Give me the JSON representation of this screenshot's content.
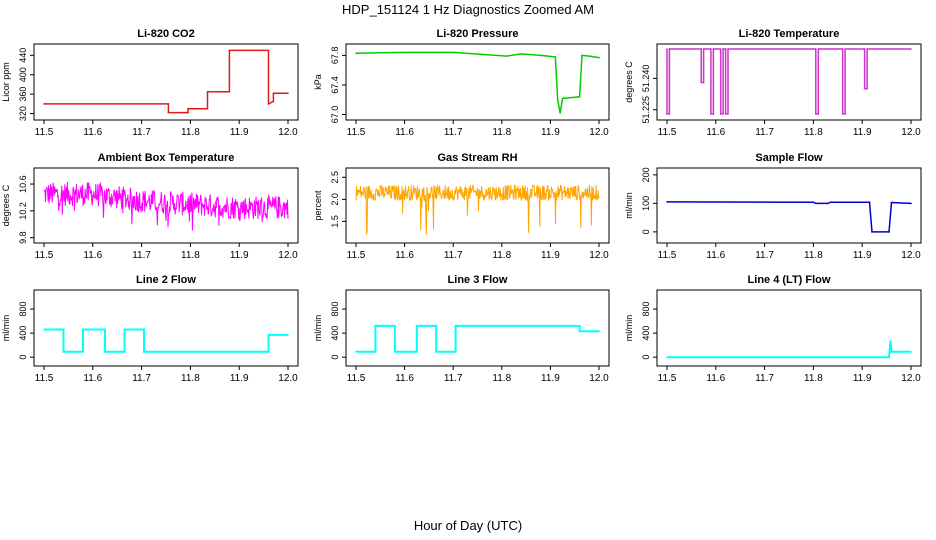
{
  "title": "HDP_151124  1 Hz Diagnostics Zoomed AM",
  "xlabel": "Hour of Day (UTC)",
  "chart_data": [
    {
      "type": "line",
      "title": "Li-820 CO2",
      "ylabel": "Licor ppm",
      "color": "#e31a1c",
      "xlim": [
        11.5,
        12.0
      ],
      "ylim": [
        315,
        455
      ],
      "xticks": [
        "11.5",
        "11.6",
        "11.7",
        "11.8",
        "11.9",
        "12.0"
      ],
      "yticks": [
        "320",
        "360",
        "400",
        "440"
      ],
      "series": [
        {
          "x": [
            11.5,
            11.755,
            11.755,
            11.795,
            11.795,
            11.835,
            11.835,
            11.88,
            11.88,
            11.96,
            11.96,
            11.97,
            11.97,
            12.0
          ],
          "y": [
            340,
            340,
            322,
            322,
            330,
            330,
            365,
            365,
            450,
            450,
            340,
            345,
            362,
            362
          ]
        }
      ]
    },
    {
      "type": "line",
      "title": "Li-820 Pressure",
      "ylabel": "kPa",
      "color": "#00cc00",
      "xlim": [
        11.5,
        12.0
      ],
      "ylim": [
        66.98,
        67.9
      ],
      "xticks": [
        "11.5",
        "11.6",
        "11.7",
        "11.8",
        "11.9",
        "12.0"
      ],
      "yticks": [
        "67.0",
        "67.4",
        "67.8"
      ],
      "series": [
        {
          "x": [
            11.5,
            11.6,
            11.7,
            11.77,
            11.81,
            11.84,
            11.88,
            11.91,
            11.915,
            11.92,
            11.925,
            11.93,
            11.96,
            11.965,
            11.98,
            12.0
          ],
          "y": [
            67.83,
            67.84,
            67.84,
            67.81,
            67.79,
            67.82,
            67.8,
            67.78,
            67.2,
            67.02,
            67.22,
            67.22,
            67.24,
            67.8,
            67.79,
            67.77
          ]
        }
      ]
    },
    {
      "type": "line",
      "title": "Li-820 Temperature",
      "ylabel": "degrees C",
      "color": "#cc33cc",
      "xlim": [
        11.5,
        12.0
      ],
      "ylim": [
        51.222,
        51.2545
      ],
      "xticks": [
        "11.5",
        "11.6",
        "11.7",
        "11.8",
        "11.9",
        "12.0"
      ],
      "yticks": [
        "51.225",
        "51.240"
      ],
      "series": [
        {
          "x": [
            11.5,
            11.5,
            11.505,
            11.505,
            11.57,
            11.57,
            11.575,
            11.575,
            11.59,
            11.59,
            11.595,
            11.595,
            11.61,
            11.61,
            11.615,
            11.615,
            11.62,
            11.62,
            11.625,
            11.625,
            11.805,
            11.805,
            11.81,
            11.81,
            11.86,
            11.86,
            11.865,
            11.865,
            11.905,
            11.905,
            11.91,
            11.91,
            12.0
          ],
          "y": [
            51.254,
            51.223,
            51.223,
            51.254,
            51.254,
            51.238,
            51.238,
            51.254,
            51.254,
            51.223,
            51.223,
            51.254,
            51.254,
            51.223,
            51.223,
            51.254,
            51.254,
            51.223,
            51.223,
            51.254,
            51.254,
            51.223,
            51.223,
            51.254,
            51.254,
            51.223,
            51.223,
            51.254,
            51.254,
            51.235,
            51.235,
            51.254,
            51.254
          ]
        }
      ]
    },
    {
      "type": "line",
      "title": "Ambient Box Temperature",
      "ylabel": "degrees C",
      "color": "#ff00ff",
      "xlim": [
        11.5,
        12.0
      ],
      "ylim": [
        9.78,
        10.78
      ],
      "xticks": [
        "11.5",
        "11.6",
        "11.7",
        "11.8",
        "11.9",
        "12.0"
      ],
      "yticks": [
        "9.8",
        "10.2",
        "10.6"
      ],
      "series": [
        {
          "x": [
            11.5,
            11.6,
            11.7,
            11.8,
            11.9,
            12.0
          ],
          "y": [
            10.45,
            10.45,
            10.35,
            10.3,
            10.25,
            10.25
          ]
        }
      ]
    },
    {
      "type": "line",
      "title": "Gas Stream RH",
      "ylabel": "percent",
      "color": "#ffa500",
      "xlim": [
        11.5,
        12.0
      ],
      "ylim": [
        1.1,
        2.62
      ],
      "xticks": [
        "11.5",
        "11.6",
        "11.7",
        "11.8",
        "11.9",
        "12.0"
      ],
      "yticks": [
        "1.5",
        "2.0",
        "2.5"
      ],
      "series": [
        {
          "x": [
            11.5,
            11.6,
            11.7,
            11.8,
            11.9,
            12.0
          ],
          "y": [
            2.15,
            2.15,
            2.15,
            2.15,
            2.15,
            2.15
          ]
        }
      ]
    },
    {
      "type": "line",
      "title": "Sample Flow",
      "ylabel": "ml/min",
      "color": "#0000cc",
      "xlim": [
        11.5,
        12.0
      ],
      "ylim": [
        -25,
        210
      ],
      "xticks": [
        "11.5",
        "11.6",
        "11.7",
        "11.8",
        "11.9",
        "12.0"
      ],
      "yticks": [
        "0",
        "100",
        "200"
      ],
      "series": [
        {
          "x": [
            11.5,
            11.8,
            11.805,
            11.83,
            11.835,
            11.915,
            11.92,
            11.955,
            11.96,
            12.0
          ],
          "y": [
            105,
            104,
            100,
            100,
            104,
            104,
            0,
            0,
            103,
            100
          ]
        }
      ]
    },
    {
      "type": "line",
      "title": "Line 2 Flow",
      "ylabel": "ml/min",
      "color": "#00ffff",
      "xlim": [
        11.5,
        12.0
      ],
      "ylim": [
        -80,
        1050
      ],
      "xticks": [
        "11.5",
        "11.6",
        "11.7",
        "11.8",
        "11.9",
        "12.0"
      ],
      "yticks": [
        "0",
        "400",
        "800"
      ],
      "series": [
        {
          "x": [
            11.5,
            11.54,
            11.54,
            11.58,
            11.58,
            11.625,
            11.625,
            11.665,
            11.665,
            11.705,
            11.705,
            11.96,
            11.96,
            12.0
          ],
          "y": [
            460,
            460,
            90,
            90,
            460,
            460,
            90,
            90,
            460,
            460,
            90,
            90,
            370,
            370
          ]
        }
      ]
    },
    {
      "type": "line",
      "title": "Line 3 Flow",
      "ylabel": "ml/min",
      "color": "#00ffff",
      "xlim": [
        11.5,
        12.0
      ],
      "ylim": [
        -80,
        1050
      ],
      "xticks": [
        "11.5",
        "11.6",
        "11.7",
        "11.8",
        "11.9",
        "12.0"
      ],
      "yticks": [
        "0",
        "400",
        "800"
      ],
      "series": [
        {
          "x": [
            11.5,
            11.54,
            11.54,
            11.58,
            11.58,
            11.625,
            11.625,
            11.665,
            11.665,
            11.705,
            11.705,
            11.96,
            11.96,
            12.0
          ],
          "y": [
            90,
            90,
            520,
            520,
            90,
            90,
            520,
            520,
            90,
            90,
            520,
            520,
            430,
            430
          ]
        }
      ]
    },
    {
      "type": "line",
      "title": "Line 4 (LT) Flow",
      "ylabel": "ml/min",
      "color": "#00ffff",
      "xlim": [
        11.5,
        12.0
      ],
      "ylim": [
        -80,
        1050
      ],
      "xticks": [
        "11.5",
        "11.6",
        "11.7",
        "11.8",
        "11.9",
        "12.0"
      ],
      "yticks": [
        "0",
        "400",
        "800"
      ],
      "series": [
        {
          "x": [
            11.5,
            11.955,
            11.958,
            11.96,
            11.96,
            12.0
          ],
          "y": [
            0,
            0,
            270,
            100,
            90,
            90
          ]
        }
      ]
    }
  ]
}
